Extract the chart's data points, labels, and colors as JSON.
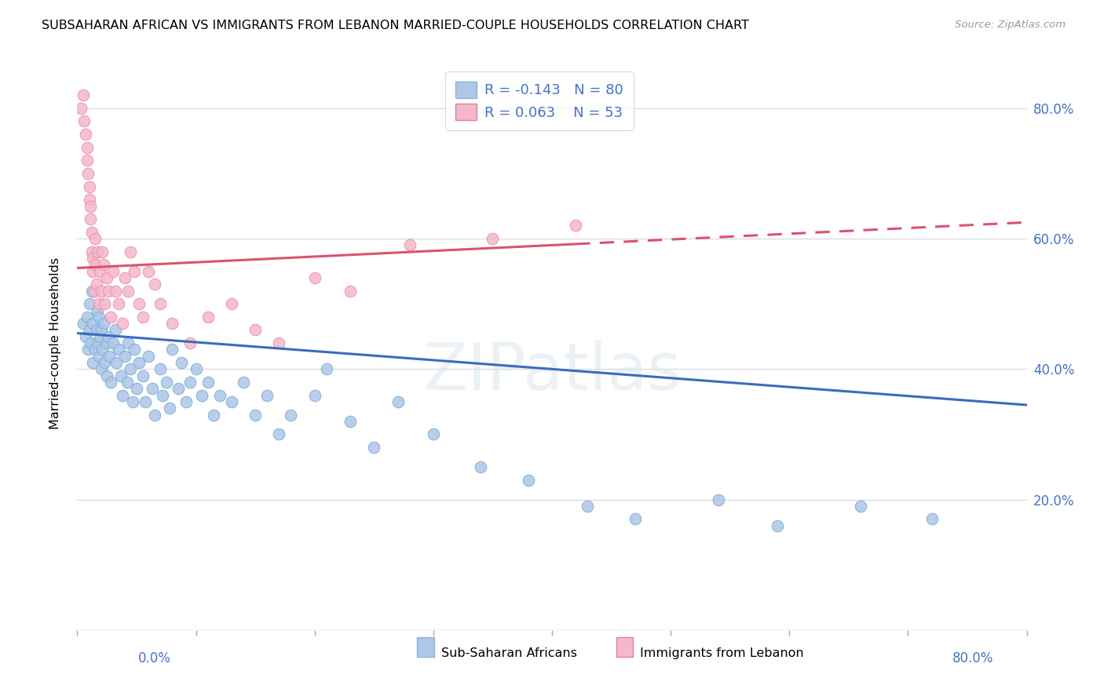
{
  "title": "SUBSAHARAN AFRICAN VS IMMIGRANTS FROM LEBANON MARRIED-COUPLE HOUSEHOLDS CORRELATION CHART",
  "source": "Source: ZipAtlas.com",
  "legend_label_blue": "Sub-Saharan Africans",
  "legend_label_pink": "Immigrants from Lebanon",
  "watermark": "ZIPatlas",
  "blue_color": "#aec6e8",
  "blue_edge": "#7aafd4",
  "pink_color": "#f5b8cb",
  "pink_edge": "#e890a8",
  "trend_blue_color": "#3a6bbf",
  "trend_pink_color": "#d9546e",
  "blue_R": -0.143,
  "blue_N": 80,
  "pink_R": 0.063,
  "pink_N": 53,
  "blue_trend_y0": 0.455,
  "blue_trend_y1": 0.345,
  "pink_trend_y0": 0.555,
  "pink_trend_y1": 0.625,
  "blue_scatter_x": [
    0.005,
    0.007,
    0.008,
    0.009,
    0.01,
    0.01,
    0.011,
    0.012,
    0.013,
    0.013,
    0.015,
    0.016,
    0.017,
    0.017,
    0.018,
    0.018,
    0.019,
    0.02,
    0.02,
    0.021,
    0.022,
    0.023,
    0.025,
    0.025,
    0.026,
    0.027,
    0.028,
    0.03,
    0.032,
    0.033,
    0.035,
    0.037,
    0.038,
    0.04,
    0.042,
    0.043,
    0.045,
    0.047,
    0.048,
    0.05,
    0.052,
    0.055,
    0.057,
    0.06,
    0.063,
    0.065,
    0.07,
    0.072,
    0.075,
    0.078,
    0.08,
    0.085,
    0.088,
    0.092,
    0.095,
    0.1,
    0.105,
    0.11,
    0.115,
    0.12,
    0.13,
    0.14,
    0.15,
    0.16,
    0.17,
    0.18,
    0.2,
    0.21,
    0.23,
    0.25,
    0.27,
    0.3,
    0.34,
    0.38,
    0.43,
    0.47,
    0.54,
    0.59,
    0.66,
    0.72
  ],
  "blue_scatter_y": [
    0.47,
    0.45,
    0.48,
    0.43,
    0.5,
    0.46,
    0.44,
    0.52,
    0.41,
    0.47,
    0.43,
    0.46,
    0.49,
    0.44,
    0.48,
    0.42,
    0.45,
    0.4,
    0.46,
    0.43,
    0.47,
    0.41,
    0.44,
    0.39,
    0.45,
    0.42,
    0.38,
    0.44,
    0.46,
    0.41,
    0.43,
    0.39,
    0.36,
    0.42,
    0.38,
    0.44,
    0.4,
    0.35,
    0.43,
    0.37,
    0.41,
    0.39,
    0.35,
    0.42,
    0.37,
    0.33,
    0.4,
    0.36,
    0.38,
    0.34,
    0.43,
    0.37,
    0.41,
    0.35,
    0.38,
    0.4,
    0.36,
    0.38,
    0.33,
    0.36,
    0.35,
    0.38,
    0.33,
    0.36,
    0.3,
    0.33,
    0.36,
    0.4,
    0.32,
    0.28,
    0.35,
    0.3,
    0.25,
    0.23,
    0.19,
    0.17,
    0.2,
    0.16,
    0.19,
    0.17
  ],
  "pink_scatter_x": [
    0.003,
    0.005,
    0.006,
    0.007,
    0.008,
    0.008,
    0.009,
    0.01,
    0.01,
    0.011,
    0.011,
    0.012,
    0.012,
    0.013,
    0.013,
    0.014,
    0.015,
    0.015,
    0.016,
    0.017,
    0.018,
    0.019,
    0.02,
    0.021,
    0.022,
    0.023,
    0.025,
    0.026,
    0.028,
    0.03,
    0.032,
    0.035,
    0.038,
    0.04,
    0.043,
    0.045,
    0.048,
    0.052,
    0.055,
    0.06,
    0.065,
    0.07,
    0.08,
    0.095,
    0.11,
    0.13,
    0.15,
    0.17,
    0.2,
    0.23,
    0.28,
    0.35,
    0.42
  ],
  "pink_scatter_y": [
    0.8,
    0.82,
    0.78,
    0.76,
    0.72,
    0.74,
    0.7,
    0.68,
    0.66,
    0.65,
    0.63,
    0.61,
    0.58,
    0.55,
    0.57,
    0.52,
    0.6,
    0.56,
    0.53,
    0.58,
    0.5,
    0.55,
    0.52,
    0.58,
    0.56,
    0.5,
    0.54,
    0.52,
    0.48,
    0.55,
    0.52,
    0.5,
    0.47,
    0.54,
    0.52,
    0.58,
    0.55,
    0.5,
    0.48,
    0.55,
    0.53,
    0.5,
    0.47,
    0.44,
    0.48,
    0.5,
    0.46,
    0.44,
    0.54,
    0.52,
    0.59,
    0.6,
    0.62
  ],
  "xlim": [
    0.0,
    0.8
  ],
  "ylim": [
    0.0,
    0.88
  ],
  "figsize": [
    14.06,
    8.92
  ],
  "dpi": 100
}
